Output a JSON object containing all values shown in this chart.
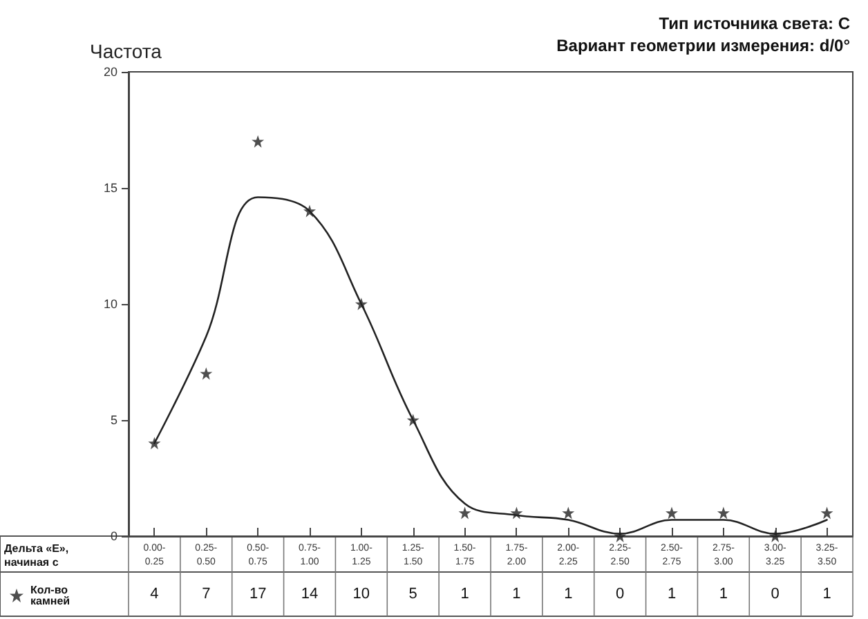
{
  "chart_data": {
    "type": "scatter",
    "title": "Тип источника света: C",
    "subtitle": "Вариант геометрии измерения: d/0°",
    "ylabel": "Частота",
    "annotations": [
      "Дельта «Е», начиная с"
    ],
    "categories": [
      "0.00-0.25",
      "0.25-0.50",
      "0.50-0.75",
      "0.75-1.00",
      "1.00-1.25",
      "1.25-1.50",
      "1.50-1.75",
      "1.75-2.00",
      "2.00-2.25",
      "2.25-2.50",
      "2.50-2.75",
      "2.75-3.00",
      "3.00-3.25",
      "3.25-3.50"
    ],
    "series": [
      {
        "name": "Кол-во камней",
        "type": "scatter",
        "color": "#222222",
        "marker": "star",
        "values": [
          4,
          7,
          17,
          14,
          10,
          5,
          1,
          1,
          1,
          0,
          1,
          1,
          0,
          1
        ],
        "value_labels": [
          "4",
          "7",
          "17",
          "14",
          "10",
          "5",
          "1",
          "1",
          "1",
          "0",
          "1",
          "1",
          "0",
          "1"
        ]
      },
      {
        "type": "line",
        "color": "#222222",
        "marker": "none",
        "line_style": "solid",
        "values": [
          4,
          8.6,
          14.6,
          14,
          10,
          5,
          1.4,
          0.9,
          0.7,
          0.1,
          0.7,
          0.7,
          0.1,
          0.7
        ]
      }
    ],
    "ylim": [
      0,
      20
    ],
    "yticks": [
      0,
      5,
      10,
      15,
      20
    ],
    "grid": false,
    "legend": "bottom left"
  }
}
